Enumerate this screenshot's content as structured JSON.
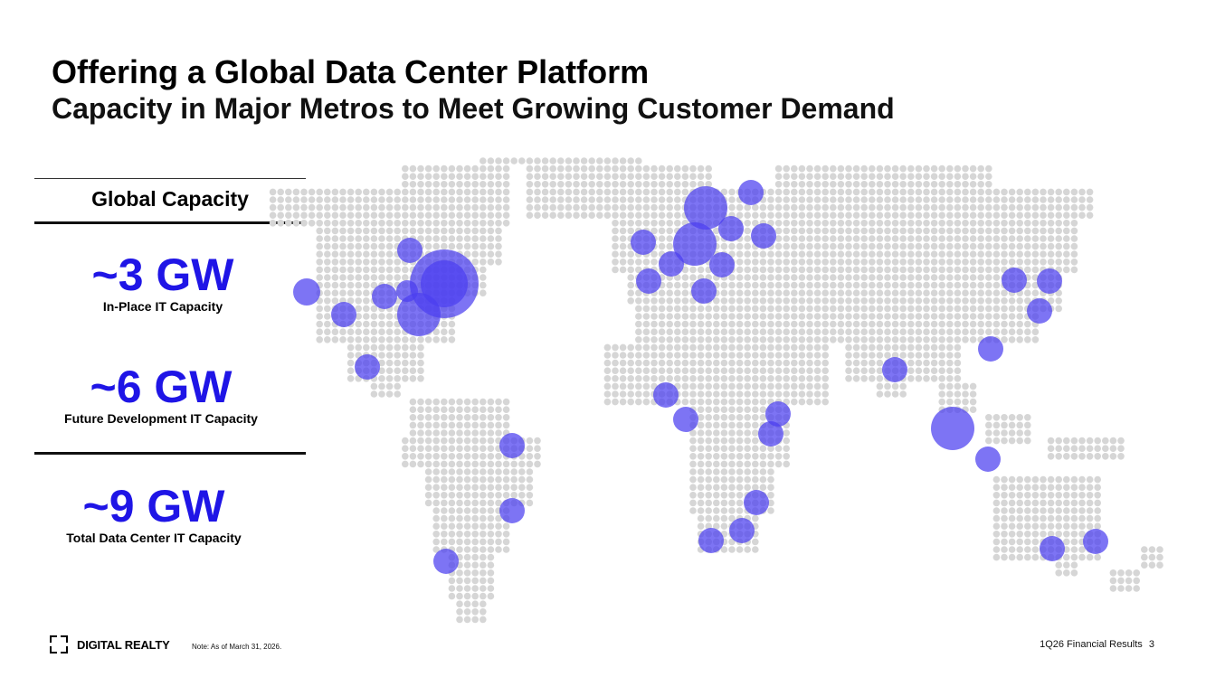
{
  "header": {
    "title": "Offering a Global Data Center Platform",
    "subtitle": "Capacity in Major Metros to Meet Growing Customer Demand"
  },
  "capacity_panel": {
    "heading": "Global Capacity",
    "metrics": [
      {
        "value": "~3 GW",
        "label": "In-Place IT Capacity"
      },
      {
        "value": "~6 GW",
        "label": "Future Development IT Capacity"
      },
      {
        "value": "~9 GW",
        "label": "Total Data Center IT Capacity"
      }
    ]
  },
  "map": {
    "dot_color": "#d6d6d6",
    "marker_color": "#4b3ff0",
    "icon": "world-dot-map"
  },
  "footer": {
    "brand": "DIGITAL REALTY",
    "note": "Note: As of March 31, 2026.",
    "report": "1Q26 Financial Results",
    "page_number": "3"
  }
}
